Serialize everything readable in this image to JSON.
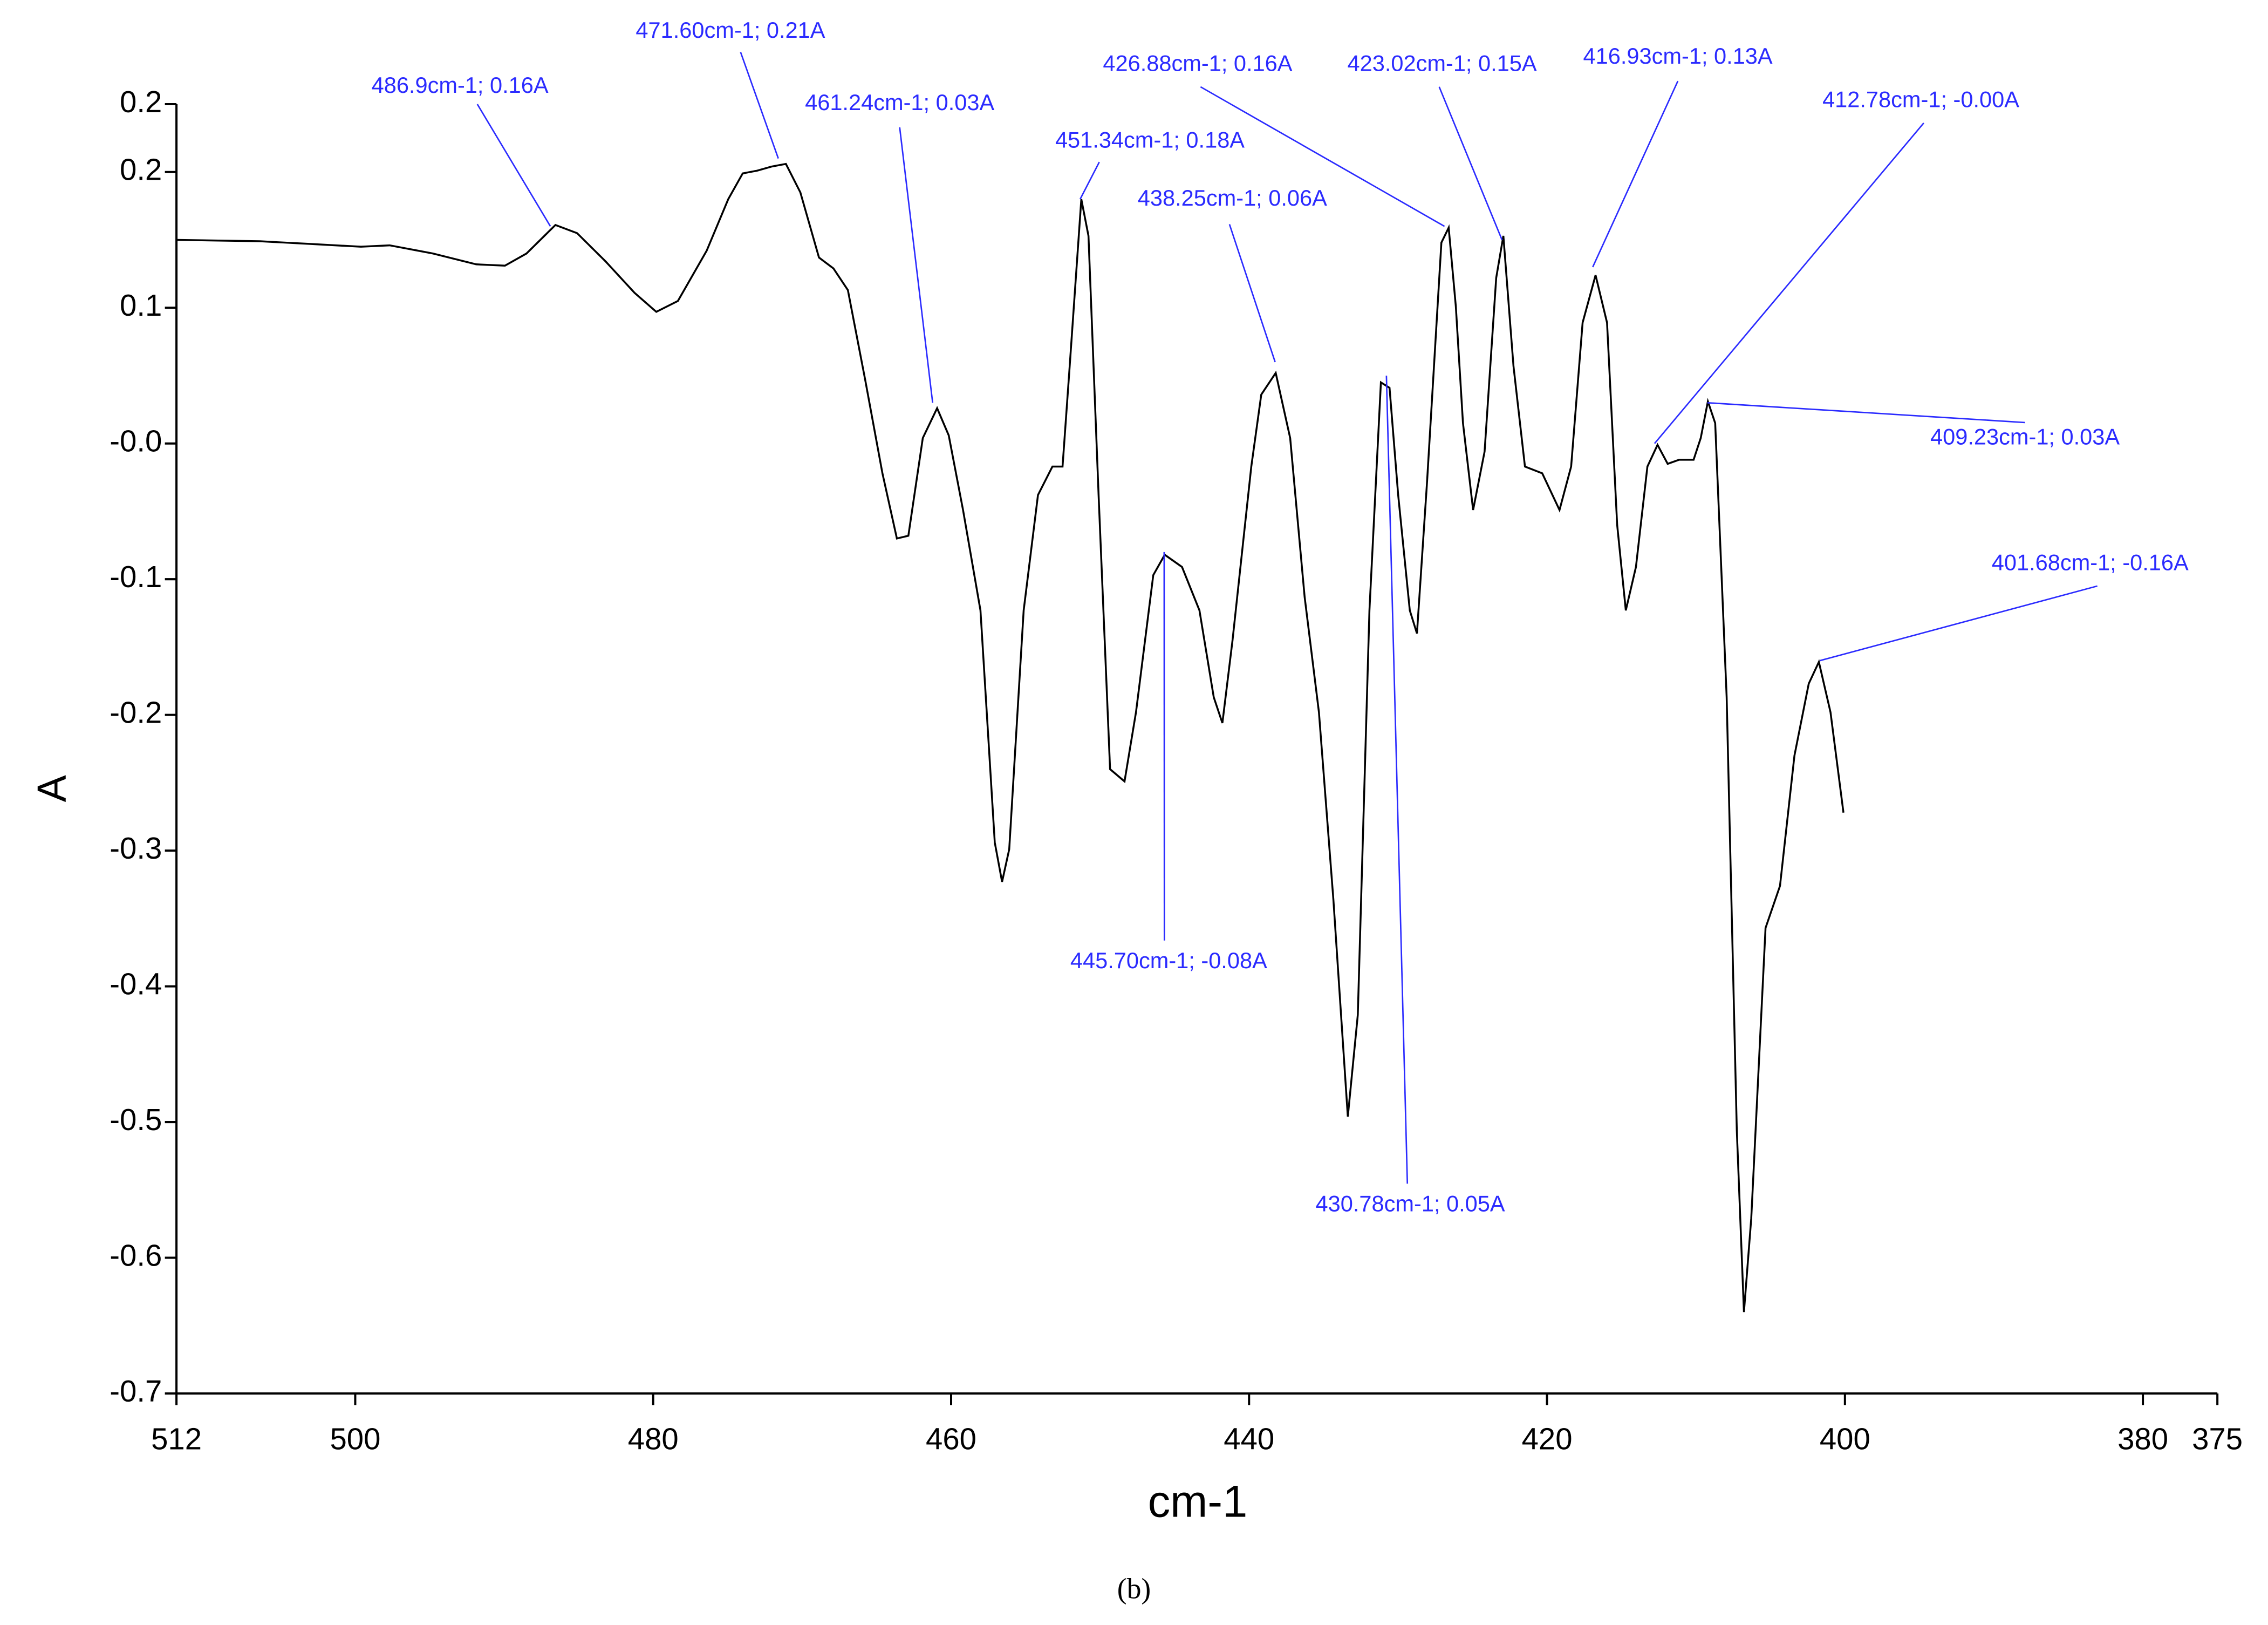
{
  "chart_data": {
    "type": "line",
    "x": [
      512.0,
      506.39,
      503.01,
      499.62,
      497.69,
      494.79,
      491.88,
      489.95,
      488.5,
      486.56,
      485.11,
      483.18,
      481.25,
      479.79,
      478.34,
      476.41,
      474.96,
      473.99,
      473.03,
      472.06,
      471.09,
      470.12,
      468.87,
      467.9,
      466.93,
      465.77,
      464.61,
      463.64,
      462.87,
      461.9,
      460.94,
      460.16,
      459.2,
      458.03,
      457.07,
      456.58,
      456.1,
      455.13,
      454.17,
      453.2,
      452.52,
      452.04,
      451.26,
      450.78,
      450.1,
      449.33,
      448.36,
      447.59,
      446.43,
      445.66,
      444.5,
      443.33,
      442.37,
      441.79,
      441.11,
      439.85,
      439.18,
      438.21,
      437.24,
      436.27,
      435.31,
      434.34,
      433.37,
      432.7,
      431.92,
      431.15,
      430.57,
      429.99,
      429.21,
      428.73,
      428.05,
      427.09,
      426.6,
      426.12,
      425.64,
      424.96,
      424.19,
      423.41,
      422.93,
      422.25,
      421.48,
      420.32,
      419.16,
      418.38,
      417.61,
      416.74,
      415.97,
      415.29,
      414.71,
      414.03,
      413.26,
      412.58,
      411.9,
      411.13,
      410.16,
      409.68,
      409.2,
      408.71,
      407.94,
      407.26,
      406.78,
      406.29,
      405.33,
      404.36,
      403.39,
      402.43,
      401.75,
      400.97,
      400.1
    ],
    "values": [
      0.15,
      0.149,
      0.147,
      0.145,
      0.146,
      0.14,
      0.132,
      0.131,
      0.14,
      0.161,
      0.155,
      0.134,
      0.111,
      0.097,
      0.105,
      0.142,
      0.18,
      0.199,
      0.201,
      0.204,
      0.206,
      0.185,
      0.137,
      0.129,
      0.113,
      0.047,
      -0.022,
      -0.07,
      -0.068,
      0.004,
      0.026,
      0.006,
      -0.049,
      -0.123,
      -0.294,
      -0.323,
      -0.299,
      -0.123,
      -0.038,
      -0.017,
      -0.017,
      0.057,
      0.18,
      0.153,
      -0.038,
      -0.24,
      -0.249,
      -0.198,
      -0.097,
      -0.082,
      -0.091,
      -0.123,
      -0.187,
      -0.206,
      -0.145,
      -0.017,
      0.036,
      0.052,
      0.004,
      -0.113,
      -0.198,
      -0.336,
      -0.496,
      -0.421,
      -0.123,
      0.045,
      0.041,
      -0.038,
      -0.123,
      -0.14,
      -0.028,
      0.148,
      0.159,
      0.101,
      0.015,
      -0.049,
      -0.006,
      0.122,
      0.153,
      0.057,
      -0.017,
      -0.022,
      -0.049,
      -0.017,
      0.089,
      0.124,
      0.089,
      -0.06,
      -0.123,
      -0.091,
      -0.017,
      -0.001,
      -0.015,
      -0.012,
      -0.012,
      0.004,
      0.031,
      0.015,
      -0.187,
      -0.506,
      -0.64,
      -0.571,
      -0.357,
      -0.326,
      -0.23,
      -0.177,
      -0.161,
      -0.198,
      -0.272
    ],
    "color": "#000000",
    "xlabel": "cm-1",
    "ylabel": "A",
    "caption": "(b)",
    "xlim": [
      512,
      375
    ],
    "xticks": [
      512,
      500,
      480,
      460,
      440,
      420,
      400,
      380,
      375
    ],
    "ylim": [
      -0.7,
      0.25
    ],
    "yticks": [
      {
        "value": 0.25,
        "label": "0.2"
      },
      0.2,
      0.1,
      {
        "value": 0,
        "label": "-0.0"
      },
      -0.1,
      -0.2,
      -0.3,
      -0.4,
      -0.5,
      -0.6,
      -0.7
    ],
    "annotation_color": "#2b2bff",
    "annotations": [
      {
        "text": "486.9cm-1; 0.16A",
        "x": 486.9,
        "y": 0.16
      },
      {
        "text": "471.60cm-1; 0.21A",
        "x": 471.6,
        "y": 0.21
      },
      {
        "text": "461.24cm-1; 0.03A",
        "x": 461.24,
        "y": 0.03
      },
      {
        "text": "451.34cm-1; 0.18A",
        "x": 451.34,
        "y": 0.18
      },
      {
        "text": "438.25cm-1; 0.06A",
        "x": 438.25,
        "y": 0.06
      },
      {
        "text": "426.88cm-1; 0.16A",
        "x": 426.88,
        "y": 0.16
      },
      {
        "text": "423.02cm-1; 0.15A",
        "x": 423.02,
        "y": 0.15
      },
      {
        "text": "416.93cm-1; 0.13A",
        "x": 416.93,
        "y": 0.13
      },
      {
        "text": "412.78cm-1; -0.00A",
        "x": 412.78,
        "y": 0
      },
      {
        "text": "409.23cm-1; 0.03A",
        "x": 409.23,
        "y": 0.03
      },
      {
        "text": "401.68cm-1; -0.16A",
        "x": 401.68,
        "y": -0.16
      },
      {
        "text": "445.70cm-1; -0.08A",
        "x": 445.7,
        "y": -0.08
      },
      {
        "text": "430.78cm-1; 0.05A",
        "x": 430.78,
        "y": 0.05
      }
    ]
  }
}
